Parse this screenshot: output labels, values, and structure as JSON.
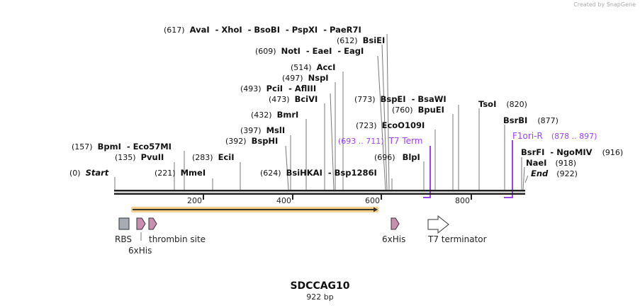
{
  "branding": "Created by SnapGene",
  "map": {
    "name": "SDCCAG10",
    "length": "922 bp"
  },
  "colors": {
    "feature_label": "#a040f0",
    "orf": "#f5c36a",
    "tag": "#c890b0",
    "rbs": "#a7abb3"
  },
  "ticks": [
    "200",
    "400",
    "600",
    "800"
  ],
  "sites": {
    "ava": {
      "pos": "(617)",
      "names": "AvaI  - XhoI  - BsoBI  - PspXI  - PaeR7I"
    },
    "bsiei": {
      "pos": "(612)",
      "names": "BsiEI"
    },
    "noti": {
      "pos": "(609)",
      "names": "NotI  - EaeI  - EagI"
    },
    "acci": {
      "pos": "(514)",
      "names": "AccI"
    },
    "nspi": {
      "pos": "(497)",
      "names": "NspI"
    },
    "pcii": {
      "pos": "(493)",
      "names": "PciI  - AflIII"
    },
    "bcivi": {
      "pos": "(473)",
      "names": "BciVI"
    },
    "bmri": {
      "pos": "(432)",
      "names": "BmrI"
    },
    "msli": {
      "pos": "(397)",
      "names": "MslI"
    },
    "bsphi": {
      "pos": "(392)",
      "names": "BspHI"
    },
    "bpmi": {
      "pos": "(157)",
      "names": "BpmI  - Eco57MI"
    },
    "pvuii": {
      "pos": "(135)",
      "names": "PvuII"
    },
    "ecii": {
      "pos": "(283)",
      "names": "EciI"
    },
    "start": {
      "pos": "(0)",
      "names": "Start"
    },
    "mmei": {
      "pos": "(221)",
      "names": "MmeI"
    },
    "bsihkai": {
      "pos": "(624)",
      "names": "BsiHKAI  - Bsp1286I"
    },
    "bspei": {
      "pos": "(773)",
      "names": "BspEI  - BsaWI"
    },
    "bpuei": {
      "pos": "(760)",
      "names": "BpuEI"
    },
    "ecoo109i": {
      "pos": "(723)",
      "names": "EcoO109I"
    },
    "blpi": {
      "pos": "(696)",
      "names": "BlpI"
    },
    "tsoi": {
      "pos": "(820)",
      "names": "TsoI"
    },
    "bsrbi": {
      "pos": "(877)",
      "names": "BsrBI"
    },
    "bsrfi": {
      "pos": "(916)",
      "names": "BsrFI  - NgoMIV"
    },
    "naei": {
      "pos": "(918)",
      "names": "NaeI"
    },
    "end": {
      "pos": "(922)",
      "names": "End"
    }
  },
  "primers": {
    "t7term": {
      "range": "(693 .. 711)",
      "name": "T7 Term"
    },
    "f1ori": {
      "range": "(878 .. 897)",
      "name": "F1ori-R"
    }
  },
  "features": {
    "rbs": "RBS",
    "his1": "6xHis",
    "thrombin": "thrombin site",
    "his2": "6xHis",
    "t7": "T7 terminator"
  }
}
